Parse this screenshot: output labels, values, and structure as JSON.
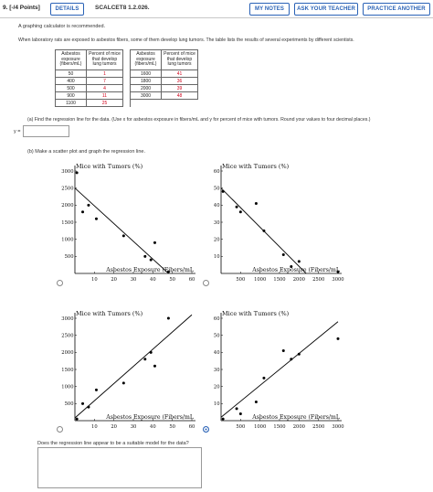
{
  "header": {
    "question_number": "9. [-/4 Points]",
    "details_label": "DETAILS",
    "code": "SCALCET8 1.2.026.",
    "my_notes_label": "MY NOTES",
    "ask_teacher_label": "ASK YOUR TEACHER",
    "practice_label": "PRACTICE ANOTHER"
  },
  "intro": {
    "calculator_note": "A graphing calculator is recommended.",
    "problem_text": "When laboratory rats are exposed to asbestos fibers, some of them develop lung tumors. The table lists the results of several experiments by different scientists."
  },
  "table": {
    "headers": [
      "Asbestos exposure (fibers/mL)",
      "Percent of mice that develop lung tumors",
      "Asbestos exposure (fibers/mL)",
      "Percent of mice that develop lung tumors"
    ],
    "left_rows": [
      [
        "50",
        "1"
      ],
      [
        "400",
        "7"
      ],
      [
        "500",
        "4"
      ],
      [
        "900",
        "11"
      ],
      [
        "1100",
        "25"
      ]
    ],
    "right_rows": [
      [
        "1600",
        "41"
      ],
      [
        "1800",
        "36"
      ],
      [
        "2000",
        "39"
      ],
      [
        "3000",
        "48"
      ]
    ]
  },
  "part_a": {
    "prompt": "(a) Find the regression line for the data. (Use x for asbestos exposure in fibers/mL and y for percent of mice with tumors. Round your values to four decimal places.)",
    "lhs": "y =",
    "answer_value": ""
  },
  "part_b": {
    "prompt": "(b) Make a scatter plot and graph the regression line.",
    "selected_option": 3
  },
  "graphs": [
    {
      "title": "Mice with Tumors (%)",
      "xlabel": "Asbestos Exposure (Fibers/mL",
      "x_ticks": [
        "10",
        "20",
        "30",
        "40",
        "50",
        "60"
      ],
      "y_ticks": [
        "500",
        "1000",
        "1500",
        "2000",
        "2500",
        "3000"
      ]
    },
    {
      "title": "Mice with Tumors (%)",
      "xlabel": "Asbestos Exposure (Fibers/mL",
      "x_ticks": [
        "500",
        "1000",
        "1500",
        "2000",
        "2500",
        "3000"
      ],
      "y_ticks": [
        "10",
        "20",
        "30",
        "40",
        "50",
        "60"
      ]
    },
    {
      "title": "Mice with Tumors (%)",
      "xlabel": "Asbestos Exposure (Fibers/mL",
      "x_ticks": [
        "10",
        "20",
        "30",
        "40",
        "50",
        "60"
      ],
      "y_ticks": [
        "500",
        "1000",
        "1500",
        "2000",
        "2500",
        "3000"
      ]
    },
    {
      "title": "Mice with Tumors (%)",
      "xlabel": "Asbestos Exposure (Fibers/mL",
      "x_ticks": [
        "500",
        "1000",
        "1500",
        "2000",
        "2500",
        "3000"
      ],
      "y_ticks": [
        "10",
        "20",
        "30",
        "40",
        "50",
        "60"
      ]
    }
  ],
  "chart_data": [
    {
      "type": "scatter",
      "title": "Mice with Tumors (%)",
      "xlabel": "Asbestos Exposure (Fibers/mL",
      "ylabel": "",
      "xlim": [
        0,
        60
      ],
      "ylim": [
        0,
        3000
      ],
      "points": [
        [
          1,
          2950
        ],
        [
          4,
          1800
        ],
        [
          7,
          2000
        ],
        [
          11,
          1600
        ],
        [
          25,
          1100
        ],
        [
          36,
          500
        ],
        [
          39,
          400
        ],
        [
          41,
          900
        ],
        [
          48,
          50
        ]
      ],
      "line": [
        [
          0,
          2500
        ],
        [
          50,
          -100
        ]
      ]
    },
    {
      "type": "scatter",
      "title": "Mice with Tumors (%)",
      "xlabel": "Asbestos Exposure (Fibers/mL",
      "ylabel": "",
      "xlim": [
        0,
        3000
      ],
      "ylim": [
        0,
        60
      ],
      "points": [
        [
          50,
          48
        ],
        [
          400,
          39
        ],
        [
          500,
          36
        ],
        [
          900,
          41
        ],
        [
          1100,
          25
        ],
        [
          1600,
          11
        ],
        [
          1800,
          4
        ],
        [
          2000,
          7
        ],
        [
          3000,
          1
        ]
      ],
      "line": [
        [
          0,
          50
        ],
        [
          2400,
          -5
        ]
      ]
    },
    {
      "type": "scatter",
      "title": "Mice with Tumors (%)",
      "xlabel": "Asbestos Exposure (Fibers/mL",
      "ylabel": "",
      "xlim": [
        0,
        60
      ],
      "ylim": [
        0,
        3000
      ],
      "points": [
        [
          1,
          50
        ],
        [
          4,
          500
        ],
        [
          7,
          400
        ],
        [
          11,
          900
        ],
        [
          25,
          1100
        ],
        [
          36,
          1800
        ],
        [
          39,
          2000
        ],
        [
          41,
          1600
        ],
        [
          48,
          3000
        ]
      ],
      "line": [
        [
          0,
          80
        ],
        [
          60,
          3100
        ]
      ]
    },
    {
      "type": "scatter",
      "title": "Mice with Tumors (%)",
      "xlabel": "Asbestos Exposure (Fibers/mL",
      "ylabel": "",
      "xlim": [
        0,
        3000
      ],
      "ylim": [
        0,
        60
      ],
      "points": [
        [
          50,
          1
        ],
        [
          400,
          7
        ],
        [
          500,
          4
        ],
        [
          900,
          11
        ],
        [
          1100,
          25
        ],
        [
          1600,
          41
        ],
        [
          1800,
          36
        ],
        [
          2000,
          39
        ],
        [
          3000,
          48
        ]
      ],
      "line": [
        [
          0,
          2
        ],
        [
          3000,
          58
        ]
      ]
    }
  ],
  "part_c": {
    "prompt": "Does the regression line appear to be a suitable model for the data?",
    "answer_value": ""
  }
}
